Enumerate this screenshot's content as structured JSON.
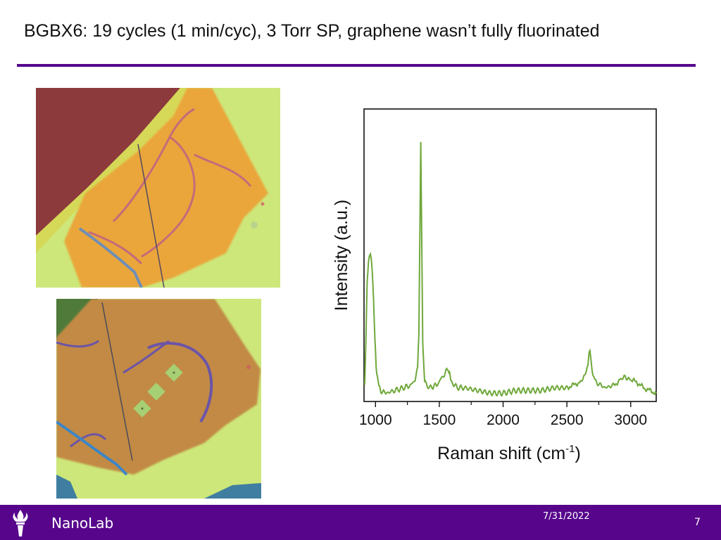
{
  "slide": {
    "title": "BGBX6: 19 cycles (1 min/cyc), 3 Torr SP, graphene wasn’t fully fluorinated"
  },
  "footer": {
    "org": "NanoLab",
    "date": "7/31/2022",
    "page": "7",
    "logo_icon": "torch-icon"
  },
  "colors": {
    "accent": "#57068c",
    "spectrum": "#6fa83a"
  },
  "chart_data": {
    "type": "line",
    "title": "",
    "xlabel": "Raman shift (cm",
    "xlabel_sup": "-1",
    "xlabel_close": ")",
    "ylabel": "Intensity (a.u.)",
    "xlim": [
      910,
      3200
    ],
    "ylim": [
      0,
      100
    ],
    "x_ticks": [
      1000,
      1500,
      2000,
      2500,
      3000
    ],
    "x_tick_labels": [
      "1000",
      "1500",
      "2000",
      "2500",
      "3000"
    ],
    "grid": false,
    "series": [
      {
        "name": "",
        "x": [
          915,
          925,
          935,
          945,
          952,
          960,
          968,
          975,
          985,
          995,
          1005,
          1020,
          1040,
          1080,
          1150,
          1220,
          1280,
          1310,
          1330,
          1340,
          1348,
          1355,
          1362,
          1370,
          1385,
          1420,
          1480,
          1540,
          1570,
          1585,
          1600,
          1640,
          1700,
          1800,
          1900,
          2000,
          2100,
          2200,
          2300,
          2400,
          2500,
          2550,
          2600,
          2640,
          2665,
          2680,
          2692,
          2705,
          2730,
          2800,
          2870,
          2920,
          2960,
          3000,
          3050,
          3100,
          3150,
          3200
        ],
        "y": [
          5,
          22,
          43,
          50,
          52,
          53,
          51,
          47,
          36,
          22,
          12,
          6,
          3,
          2,
          3,
          4,
          5,
          7,
          12,
          24,
          62,
          94,
          60,
          20,
          6,
          4,
          5,
          9,
          11,
          8,
          6,
          4,
          4,
          3,
          2,
          2,
          3,
          3,
          3,
          4,
          4,
          5,
          6,
          8,
          13,
          18,
          13,
          8,
          6,
          4,
          5,
          7,
          8,
          7,
          6,
          4,
          3,
          2
        ]
      }
    ]
  }
}
